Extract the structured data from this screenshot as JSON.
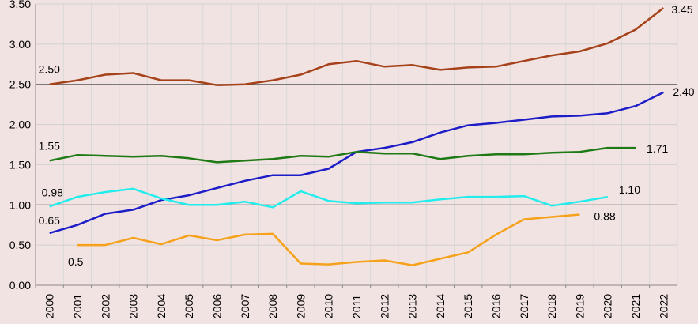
{
  "chart_data": {
    "type": "line",
    "title": "",
    "xlabel": "",
    "ylabel": "",
    "x": [
      "2000",
      "2001",
      "2002",
      "2003",
      "2004",
      "2005",
      "2006",
      "2007",
      "2008",
      "2009",
      "2010",
      "2011",
      "2012",
      "2013",
      "2014",
      "2015",
      "2016",
      "2017",
      "2018",
      "2019",
      "2020",
      "2021",
      "2022"
    ],
    "ylim": [
      0,
      3.5
    ],
    "yticks": [
      "0.00",
      "0.50",
      "1.00",
      "1.50",
      "2.00",
      "2.50",
      "3.00",
      "3.50"
    ],
    "grid": {
      "vertical": true,
      "horizontal": true,
      "highlight_lines": [
        1.0,
        2.5
      ]
    },
    "legend": "none",
    "series": [
      {
        "color": "#a5421a",
        "values": [
          2.5,
          2.55,
          2.62,
          2.64,
          2.55,
          2.55,
          2.49,
          2.5,
          2.55,
          2.62,
          2.75,
          2.79,
          2.72,
          2.74,
          2.68,
          2.71,
          2.72,
          2.79,
          2.86,
          2.91,
          3.01,
          3.18,
          3.45
        ],
        "labels": [
          {
            "index": 0,
            "text": "2.50"
          },
          {
            "index": 22,
            "text": "3.45"
          }
        ]
      },
      {
        "color": "#1d1dc8",
        "values": [
          0.65,
          0.75,
          0.89,
          0.94,
          1.06,
          1.12,
          1.21,
          1.3,
          1.37,
          1.37,
          1.45,
          1.66,
          1.71,
          1.78,
          1.9,
          1.99,
          2.02,
          2.06,
          2.1,
          2.11,
          2.14,
          2.23,
          2.4
        ],
        "labels": [
          {
            "index": 0,
            "text": "0.65"
          },
          {
            "index": 22,
            "text": "2.40"
          }
        ]
      },
      {
        "color": "#1e7a14",
        "values": [
          1.55,
          1.62,
          1.61,
          1.6,
          1.61,
          1.58,
          1.53,
          1.55,
          1.57,
          1.61,
          1.6,
          1.66,
          1.64,
          1.64,
          1.57,
          1.61,
          1.63,
          1.63,
          1.65,
          1.66,
          1.71,
          1.71,
          null
        ],
        "labels": [
          {
            "index": 0,
            "text": "1.55"
          },
          {
            "index": 21,
            "text": "1.71"
          }
        ]
      },
      {
        "color": "#22ecec",
        "values": [
          0.98,
          1.1,
          1.16,
          1.2,
          1.08,
          1.0,
          1.0,
          1.04,
          0.97,
          1.17,
          1.05,
          1.02,
          1.03,
          1.03,
          1.07,
          1.1,
          1.1,
          1.11,
          0.99,
          1.04,
          1.1,
          null,
          null
        ],
        "labels": [
          {
            "index": 0,
            "text": "0.98"
          },
          {
            "index": 20,
            "text": "1.10"
          }
        ]
      },
      {
        "color": "#f5a21a",
        "values": [
          null,
          0.5,
          0.5,
          0.59,
          0.51,
          0.62,
          0.56,
          0.63,
          0.64,
          0.27,
          0.26,
          0.29,
          0.31,
          0.25,
          0.33,
          0.41,
          0.63,
          0.82,
          0.85,
          0.88,
          null,
          null,
          null
        ],
        "labels": [
          {
            "index": 1,
            "text": "0.5"
          },
          {
            "index": 19,
            "text": "0.88"
          }
        ]
      }
    ]
  }
}
